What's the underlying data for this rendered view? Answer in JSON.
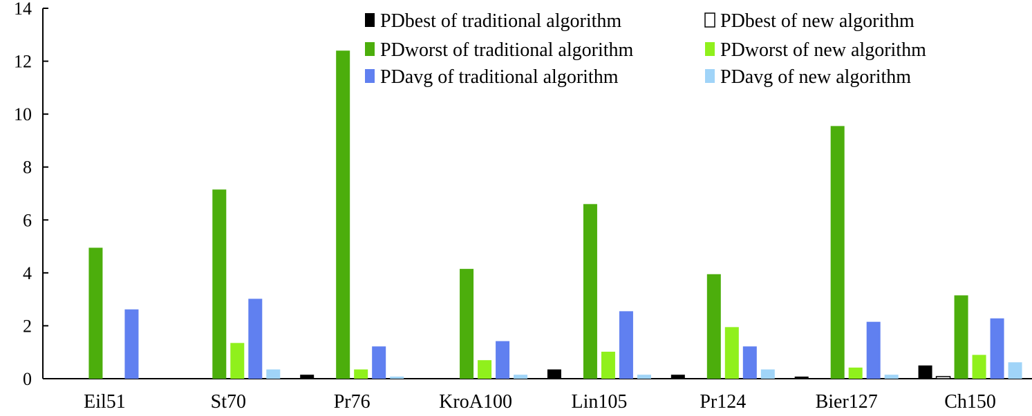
{
  "chart_data": {
    "type": "bar",
    "title": "",
    "xlabel": "",
    "ylabel": "",
    "ylim": [
      0,
      14
    ],
    "yticks": [
      0,
      2,
      4,
      6,
      8,
      10,
      12,
      14
    ],
    "grid": false,
    "legend_position": "top-right",
    "categories": [
      "Eil51",
      "St70",
      "Pr76",
      "KroA100",
      "Lin105",
      "Pr124",
      "Bier127",
      "Ch150"
    ],
    "series": [
      {
        "name": "PDbest of traditional algorithm",
        "color": "#000000",
        "outlined": false,
        "values": [
          0,
          0,
          0.15,
          0,
          0.35,
          0.15,
          0.08,
          0.5
        ]
      },
      {
        "name": "PDbest of new algorithm",
        "color": "#ffffff",
        "outlined": true,
        "values": [
          0,
          0,
          0,
          0,
          0,
          0,
          0,
          0.08
        ]
      },
      {
        "name": "PDworst of traditional algorithm",
        "color": "#4cae0c",
        "outlined": false,
        "values": [
          4.95,
          7.15,
          12.4,
          4.15,
          6.6,
          3.95,
          9.55,
          3.15
        ]
      },
      {
        "name": "PDworst of new algorithm",
        "color": "#90f01c",
        "outlined": false,
        "values": [
          0,
          1.35,
          0.35,
          0.7,
          1.02,
          1.95,
          0.42,
          0.9
        ]
      },
      {
        "name": "PDavg of traditional algorithm",
        "color": "#6080f0",
        "outlined": false,
        "values": [
          2.62,
          3.02,
          1.22,
          1.42,
          2.55,
          1.22,
          2.15,
          2.28
        ]
      },
      {
        "name": "PDavg of new algorithm",
        "color": "#a0d4f8",
        "outlined": false,
        "values": [
          0,
          0.35,
          0.08,
          0.15,
          0.15,
          0.35,
          0.15,
          0.62
        ]
      }
    ]
  }
}
